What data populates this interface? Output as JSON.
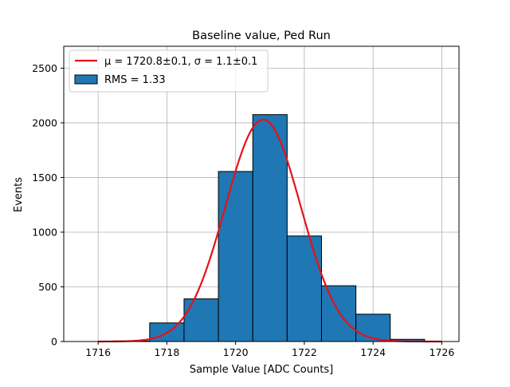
{
  "chart_data": {
    "type": "bar",
    "title": "Baseline value, Ped Run",
    "xlabel": "Sample Value [ADC Counts]",
    "ylabel": "Events",
    "xlim": [
      1715.0,
      1726.5
    ],
    "ylim": [
      0,
      2700
    ],
    "xticks": [
      1716,
      1718,
      1720,
      1722,
      1724,
      1726
    ],
    "yticks": [
      0,
      500,
      1000,
      1500,
      2000,
      2500
    ],
    "grid": true,
    "legend_position": "upper-left",
    "histogram": {
      "name": "RMS = 1.33",
      "color": "#1f77b4",
      "edgecolor": "#000000",
      "bins": [
        {
          "x0": 1715.5,
          "x1": 1716.5,
          "value": 0
        },
        {
          "x0": 1716.5,
          "x1": 1717.5,
          "value": 5
        },
        {
          "x0": 1717.5,
          "x1": 1718.5,
          "value": 170
        },
        {
          "x0": 1718.5,
          "x1": 1719.5,
          "value": 390
        },
        {
          "x0": 1719.5,
          "x1": 1720.5,
          "value": 1555
        },
        {
          "x0": 1720.5,
          "x1": 1721.5,
          "value": 2075
        },
        {
          "x0": 1721.5,
          "x1": 1722.5,
          "value": 965
        },
        {
          "x0": 1722.5,
          "x1": 1723.5,
          "value": 510
        },
        {
          "x0": 1723.5,
          "x1": 1724.5,
          "value": 250
        },
        {
          "x0": 1724.5,
          "x1": 1725.5,
          "value": 20
        }
      ]
    },
    "fit": {
      "name": "$\\mu = 1720.8 ± 0.1, \\sigma = 1.1 ± 0.1$",
      "legend_text": "μ = 1720.8±0.1, σ = 1.1±0.1",
      "color": "#e8101a",
      "type": "gaussian",
      "amplitude": 2030,
      "mu": 1720.8,
      "sigma": 1.1,
      "x_range": [
        1716.0,
        1726.0
      ]
    }
  }
}
